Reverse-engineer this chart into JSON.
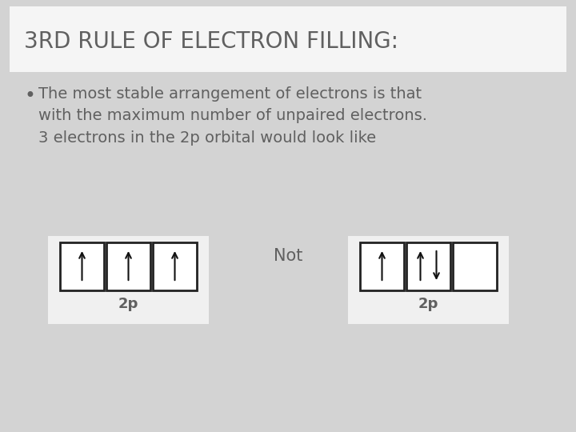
{
  "bg_color": "#d3d3d3",
  "title_box_color": "#f5f5f5",
  "title_text": "3RD RULE OF ELECTRON FILLING:",
  "title_fontsize": 20,
  "title_color": "#606060",
  "body_text_color": "#606060",
  "body_fontsize": 14,
  "bullet_text": "The most stable arrangement of electrons is that\nwith the maximum number of unpaired electrons.\n3 electrons in the 2p orbital would look like",
  "not_text": "Not",
  "not_fontsize": 15,
  "label_2p": "2p",
  "label_fontsize": 13,
  "box_facecolor": "#ffffff",
  "box_edgecolor": "#222222",
  "arrow_color": "#111111",
  "diagram_bg": "#f0f0f0"
}
